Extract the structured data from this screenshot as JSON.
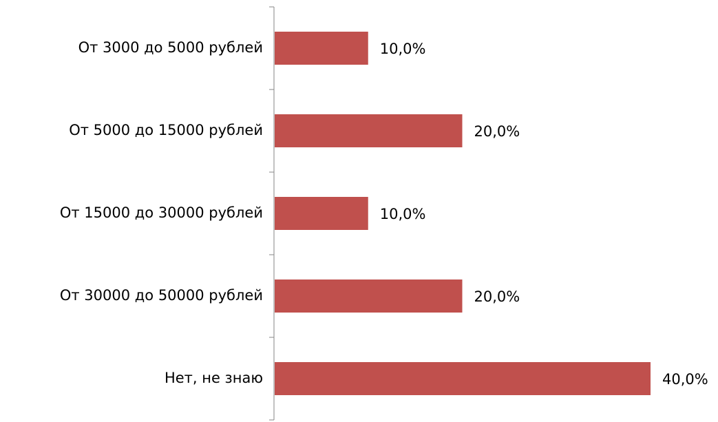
{
  "chart_data": {
    "type": "bar",
    "orientation": "horizontal",
    "categories": [
      "От 3000 до 5000 рублей",
      "От 5000 до 15000 рублей",
      "От 15000 до 30000 рублей",
      "От 30000 до 50000 рублей",
      "Нет, не знаю"
    ],
    "values": [
      10,
      20,
      10,
      20,
      40
    ],
    "value_labels": [
      "10,0%",
      "20,0%",
      "10,0%",
      "20,0%",
      "40,0%"
    ],
    "color": "#c0504d"
  }
}
